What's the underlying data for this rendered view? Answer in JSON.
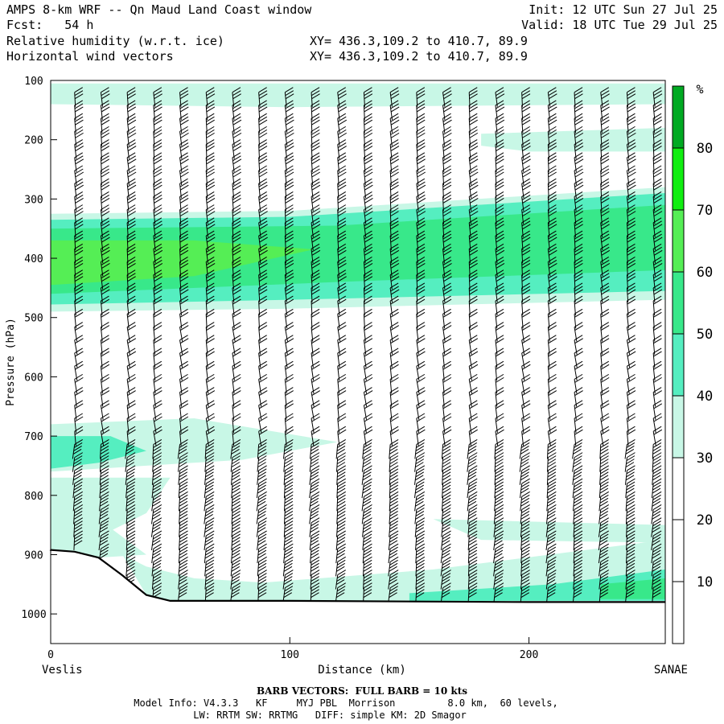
{
  "header": {
    "title": "AMPS 8-km WRF -- Qn Maud Land Coast window",
    "forecast": "Fcst:   54 h",
    "field1": "Relative humidity (w.r.t. ice)",
    "field2": "Horizontal wind vectors",
    "init": "Init: 12 UTC Sun 27 Jul 25",
    "valid": "Valid: 18 UTC Tue 29 Jul 25",
    "xy1": "XY= 436.3,109.2 to 410.7, 89.9",
    "xy2": "XY= 436.3,109.2 to 410.7, 89.9"
  },
  "footer": {
    "barb_note": "BARB VECTORS:  FULL BARB = 10 kts",
    "model_info": "Model Info: V4.3.3   KF     MYJ PBL  Morrison         8.0 km,  60 levels,",
    "physics": "LW: RRTM SW: RRTMG   DIFF: simple KM: 2D Smagor"
  },
  "colors": {
    "rh_30_40": "#c8f7e6",
    "rh_40_50": "#55eec0",
    "rh_50_60": "#38e88a",
    "rh_60_70": "#55ee55",
    "rh_70_80": "#11ee11",
    "rh_80_plus": "#00aa22",
    "terrain": "#000000"
  },
  "chart_data": {
    "type": "cross-section",
    "xlabel": "Distance (km)",
    "ylabel": "Pressure (hPa)",
    "xlim": [
      0,
      257
    ],
    "ylim": [
      1050,
      100
    ],
    "x_ticks": [
      0,
      100,
      200
    ],
    "y_ticks": [
      100,
      200,
      300,
      400,
      500,
      600,
      700,
      800,
      900,
      1000
    ],
    "left_endpoint": "Veslis",
    "right_endpoint": "SANAE",
    "colorbar": {
      "unit": "%",
      "levels": [
        10,
        20,
        30,
        40,
        50,
        60,
        70,
        80
      ],
      "bins": [
        {
          "range": [
            0,
            30
          ],
          "color": "#ffffff"
        },
        {
          "range": [
            30,
            40
          ],
          "color": "#c8f7e6"
        },
        {
          "range": [
            40,
            50
          ],
          "color": "#55eec0"
        },
        {
          "range": [
            50,
            60
          ],
          "color": "#38e88a"
        },
        {
          "range": [
            60,
            70
          ],
          "color": "#55ee55"
        },
        {
          "range": [
            70,
            80
          ],
          "color": "#11ee11"
        },
        {
          "range": [
            80,
            100
          ],
          "color": "#00aa22"
        }
      ]
    },
    "terrain_surface": [
      {
        "x": 0,
        "p": 892
      },
      {
        "x": 10,
        "p": 895
      },
      {
        "x": 20,
        "p": 905
      },
      {
        "x": 30,
        "p": 935
      },
      {
        "x": 40,
        "p": 968
      },
      {
        "x": 50,
        "p": 978
      },
      {
        "x": 100,
        "p": 978
      },
      {
        "x": 150,
        "p": 979
      },
      {
        "x": 200,
        "p": 980
      },
      {
        "x": 257,
        "p": 980
      }
    ],
    "rh_regions": [
      {
        "level": "30-40",
        "points": [
          [
            0,
            105
          ],
          [
            257,
            105
          ],
          [
            257,
            140
          ],
          [
            100,
            145
          ],
          [
            0,
            140
          ]
        ]
      },
      {
        "level": "30-40",
        "points": [
          [
            180,
            190
          ],
          [
            257,
            180
          ],
          [
            257,
            220
          ],
          [
            200,
            220
          ],
          [
            180,
            210
          ]
        ]
      },
      {
        "level": "30-40",
        "points": [
          [
            0,
            325
          ],
          [
            100,
            320
          ],
          [
            257,
            280
          ],
          [
            257,
            470
          ],
          [
            100,
            485
          ],
          [
            0,
            490
          ]
        ]
      },
      {
        "level": "40-50",
        "points": [
          [
            0,
            335
          ],
          [
            100,
            330
          ],
          [
            257,
            290
          ],
          [
            257,
            455
          ],
          [
            100,
            470
          ],
          [
            0,
            478
          ]
        ]
      },
      {
        "level": "50-60",
        "points": [
          [
            0,
            350
          ],
          [
            120,
            345
          ],
          [
            257,
            310
          ],
          [
            257,
            420
          ],
          [
            120,
            440
          ],
          [
            0,
            460
          ]
        ]
      },
      {
        "level": "60-70",
        "points": [
          [
            0,
            370
          ],
          [
            60,
            370
          ],
          [
            110,
            385
          ],
          [
            60,
            430
          ],
          [
            0,
            445
          ]
        ]
      },
      {
        "level": "30-40",
        "points": [
          [
            0,
            680
          ],
          [
            60,
            670
          ],
          [
            120,
            710
          ],
          [
            80,
            740
          ],
          [
            40,
            750
          ],
          [
            0,
            760
          ]
        ]
      },
      {
        "level": "40-50",
        "points": [
          [
            0,
            700
          ],
          [
            25,
            700
          ],
          [
            40,
            725
          ],
          [
            20,
            745
          ],
          [
            0,
            755
          ]
        ]
      },
      {
        "level": "30-40",
        "points": [
          [
            0,
            770
          ],
          [
            50,
            770
          ],
          [
            40,
            830
          ],
          [
            25,
            860
          ],
          [
            15,
            880
          ],
          [
            0,
            885
          ]
        ]
      },
      {
        "level": "30-40",
        "points": [
          [
            0,
            800
          ],
          [
            8,
            790
          ],
          [
            20,
            840
          ],
          [
            40,
            900
          ],
          [
            20,
            905
          ],
          [
            0,
            900
          ]
        ]
      },
      {
        "level": "30-40",
        "points": [
          [
            30,
            900
          ],
          [
            40,
            920
          ],
          [
            60,
            940
          ],
          [
            100,
            950
          ],
          [
            100,
            978
          ],
          [
            50,
            978
          ],
          [
            40,
            968
          ]
        ]
      },
      {
        "level": "30-40",
        "points": [
          [
            80,
            950
          ],
          [
            160,
            925
          ],
          [
            257,
            875
          ],
          [
            257,
            978
          ],
          [
            80,
            978
          ]
        ]
      },
      {
        "level": "30-40",
        "points": [
          [
            160,
            840
          ],
          [
            257,
            850
          ],
          [
            257,
            880
          ],
          [
            180,
            875
          ]
        ]
      },
      {
        "level": "40-50",
        "points": [
          [
            150,
            965
          ],
          [
            210,
            950
          ],
          [
            257,
            925
          ],
          [
            257,
            978
          ],
          [
            150,
            978
          ]
        ]
      },
      {
        "level": "50-60",
        "points": [
          [
            230,
            950
          ],
          [
            257,
            940
          ],
          [
            257,
            975
          ],
          [
            230,
            975
          ]
        ]
      }
    ]
  }
}
